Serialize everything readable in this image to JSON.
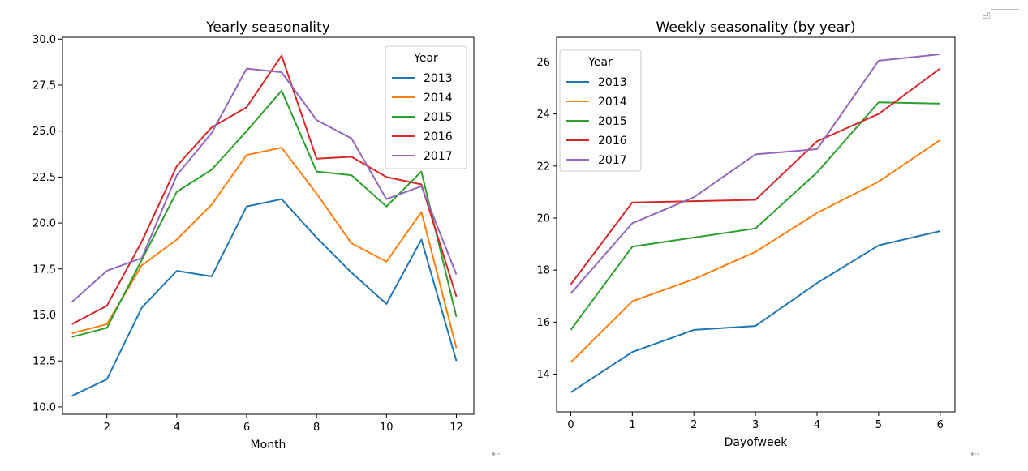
{
  "chart_data": [
    {
      "type": "line",
      "title": "Yearly seasonality",
      "xlabel": "Month",
      "ylabel": "",
      "x": [
        1,
        2,
        3,
        4,
        5,
        6,
        7,
        8,
        9,
        10,
        11,
        12
      ],
      "xlim": [
        0.73,
        12.5
      ],
      "ylim": [
        9.6,
        30.1
      ],
      "xticks": [
        2,
        4,
        6,
        8,
        10,
        12
      ],
      "xtick_labels": [
        "2",
        "4",
        "6",
        "8",
        "10",
        "12"
      ],
      "yticks": [
        10,
        12.5,
        15,
        17.5,
        20,
        22.5,
        25,
        27.5,
        30
      ],
      "ytick_labels": [
        "10.0",
        "12.5",
        "15.0",
        "17.5",
        "20.0",
        "22.5",
        "25.0",
        "27.5",
        "30.0"
      ],
      "grid": false,
      "legend": {
        "title": "Year",
        "position": "top-right"
      },
      "series": [
        {
          "name": "2013",
          "color": "#1f77b4",
          "values": [
            10.6,
            11.5,
            15.4,
            17.4,
            17.1,
            20.9,
            21.3,
            19.2,
            17.3,
            15.6,
            19.1,
            12.5
          ]
        },
        {
          "name": "2014",
          "color": "#ff7f0e",
          "values": [
            14.0,
            14.5,
            17.7,
            19.1,
            21.0,
            23.7,
            24.1,
            21.6,
            18.9,
            17.9,
            20.6,
            13.2
          ]
        },
        {
          "name": "2015",
          "color": "#2ca02c",
          "values": [
            13.8,
            14.3,
            18.0,
            21.7,
            22.9,
            25.0,
            27.2,
            22.8,
            22.6,
            20.9,
            22.8,
            14.9
          ]
        },
        {
          "name": "2016",
          "color": "#d62728",
          "values": [
            14.5,
            15.5,
            19.0,
            23.1,
            25.2,
            26.3,
            29.1,
            23.5,
            23.6,
            22.5,
            22.1,
            16.0
          ]
        },
        {
          "name": "2017",
          "color": "#9467bd",
          "values": [
            15.7,
            17.4,
            18.1,
            22.6,
            24.9,
            28.4,
            28.2,
            25.6,
            24.6,
            21.3,
            22.0,
            17.2
          ]
        }
      ]
    },
    {
      "type": "line",
      "title": "Weekly seasonality (by year)",
      "xlabel": "Dayofweek",
      "ylabel": "",
      "x": [
        0,
        1,
        2,
        3,
        4,
        5,
        6
      ],
      "xlim": [
        -0.23,
        6.24
      ],
      "ylim": [
        12.55,
        26.95
      ],
      "xticks": [
        0,
        1,
        2,
        3,
        4,
        5,
        6
      ],
      "xtick_labels": [
        "0",
        "1",
        "2",
        "3",
        "4",
        "5",
        "6"
      ],
      "yticks": [
        14,
        16,
        18,
        20,
        22,
        24,
        26
      ],
      "ytick_labels": [
        "14",
        "16",
        "18",
        "20",
        "22",
        "24",
        "26"
      ],
      "grid": false,
      "legend": {
        "title": "Year",
        "position": "top-left"
      },
      "series": [
        {
          "name": "2013",
          "color": "#1f77b4",
          "values": [
            13.3,
            14.85,
            15.7,
            15.85,
            17.5,
            18.95,
            19.5
          ]
        },
        {
          "name": "2014",
          "color": "#ff7f0e",
          "values": [
            14.45,
            16.8,
            17.65,
            18.7,
            20.2,
            21.4,
            23.0
          ]
        },
        {
          "name": "2015",
          "color": "#2ca02c",
          "values": [
            15.7,
            18.9,
            19.25,
            19.6,
            21.75,
            24.45,
            24.4
          ]
        },
        {
          "name": "2016",
          "color": "#d62728",
          "values": [
            17.45,
            20.6,
            20.65,
            20.7,
            22.95,
            24.0,
            25.75
          ]
        },
        {
          "name": "2017",
          "color": "#9467bd",
          "values": [
            17.1,
            19.8,
            20.8,
            22.45,
            22.65,
            26.05,
            26.3
          ]
        }
      ]
    }
  ],
  "decor": {
    "return_glyph": "⏎",
    "enter_glyph": "⇠"
  }
}
